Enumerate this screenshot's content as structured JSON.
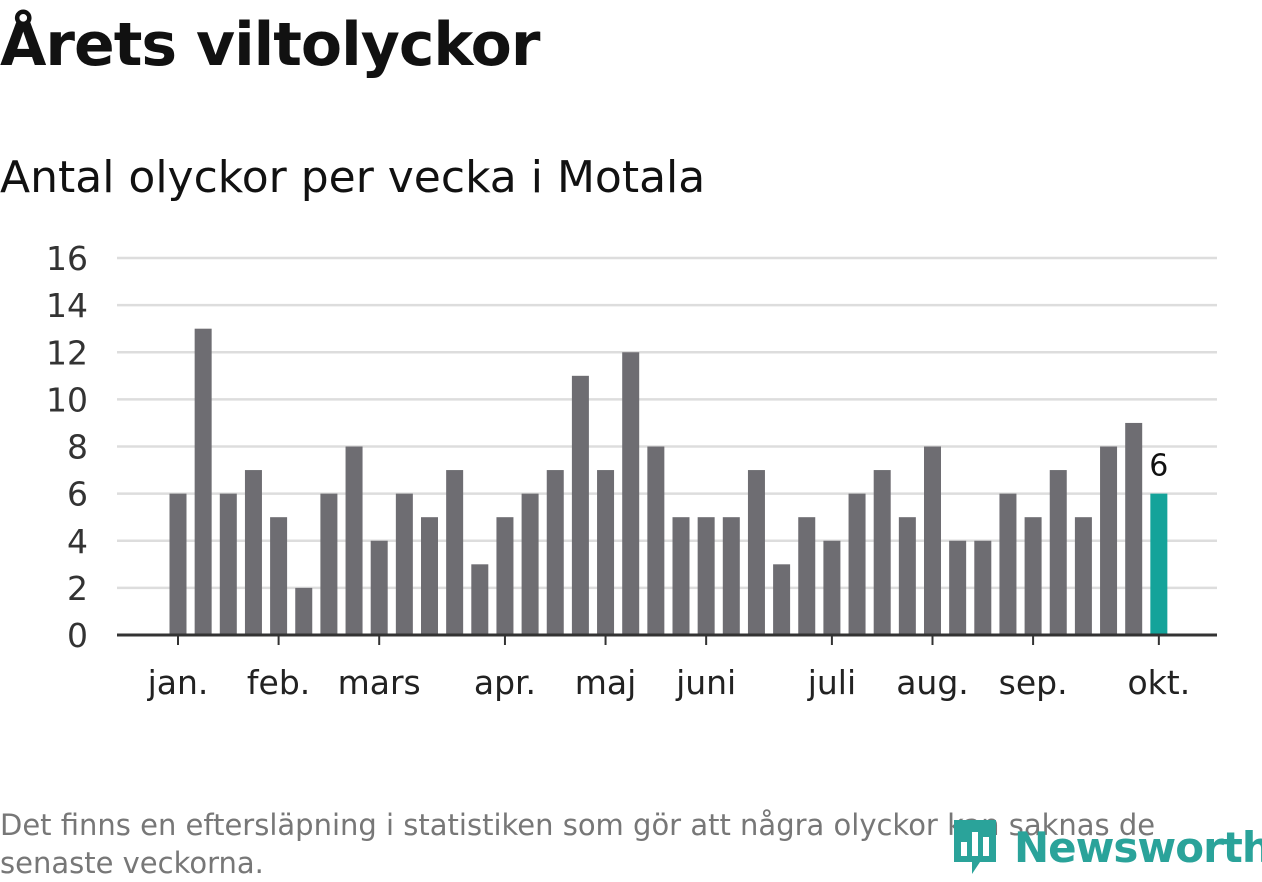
{
  "header": {
    "title": "Årets viltolyckor",
    "subtitle": "Antal olyckor per vecka i Motala"
  },
  "footer": {
    "note": "Det finns en eftersläpning i statistiken som gör att några olyckor kan saknas de senaste veckorna.",
    "brand": "Newsworthy"
  },
  "colors": {
    "bar": "#6e6d72",
    "highlight": "#14a39a",
    "grid": "#dddddd",
    "axis": "#333333",
    "brand": "#2aa39a"
  },
  "chart_data": {
    "type": "bar",
    "title": "Antal olyckor per vecka i Motala",
    "xlabel": "",
    "ylabel": "",
    "ylim": [
      0,
      16
    ],
    "yticks": [
      0,
      2,
      4,
      6,
      8,
      10,
      12,
      14,
      16
    ],
    "grid": true,
    "values": [
      6,
      13,
      6,
      7,
      5,
      2,
      6,
      8,
      4,
      6,
      5,
      7,
      3,
      5,
      6,
      7,
      11,
      7,
      12,
      8,
      5,
      5,
      5,
      7,
      3,
      5,
      4,
      6,
      7,
      5,
      8,
      4,
      4,
      6,
      5,
      7,
      5,
      8,
      9,
      6
    ],
    "highlight_index": 39,
    "highlight_label": "6",
    "month_ticks": [
      {
        "label": "jan.",
        "bar_index": 0
      },
      {
        "label": "feb.",
        "bar_index": 4
      },
      {
        "label": "mars",
        "bar_index": 8
      },
      {
        "label": "apr.",
        "bar_index": 13
      },
      {
        "label": "maj",
        "bar_index": 17
      },
      {
        "label": "juni",
        "bar_index": 21
      },
      {
        "label": "juli",
        "bar_index": 26
      },
      {
        "label": "aug.",
        "bar_index": 30
      },
      {
        "label": "sep.",
        "bar_index": 34
      },
      {
        "label": "okt.",
        "bar_index": 39
      }
    ]
  }
}
